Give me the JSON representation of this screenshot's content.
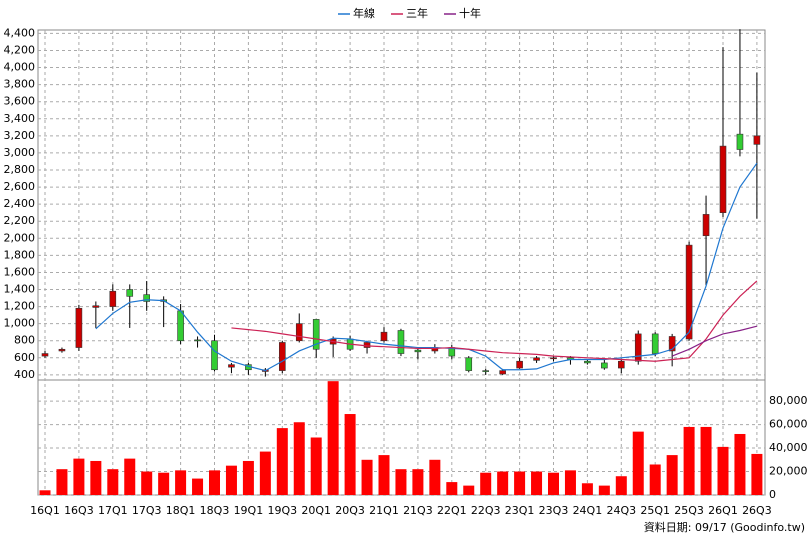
{
  "chart_data": [
    {
      "type": "candlestick",
      "categories": [
        "16Q1",
        null,
        "16Q3",
        null,
        "17Q1",
        null,
        "17Q3",
        null,
        "18Q1",
        null,
        "18Q3",
        null,
        "19Q1",
        null,
        "19Q3",
        null,
        "20Q1",
        null,
        "20Q3",
        null,
        "21Q1",
        null,
        "21Q3",
        null,
        "22Q1",
        null,
        "22Q3",
        null,
        "23Q1",
        null,
        "23Q3",
        null,
        "24Q1",
        null,
        "24Q3",
        null,
        "25Q1",
        null,
        "25Q3",
        null,
        "26Q1",
        null,
        "26Q3"
      ],
      "open": [
        620,
        680,
        720,
        1190,
        1200,
        1400,
        1340,
        1280,
        1150,
        810,
        800,
        490,
        520,
        440,
        450,
        800,
        1050,
        760,
        820,
        720,
        800,
        920,
        690,
        680,
        720,
        600,
        450,
        410,
        480,
        570,
        590,
        600,
        560,
        540,
        480,
        560,
        880,
        680,
        820,
        2030,
        2300,
        3220,
        3100
      ],
      "high": [
        680,
        720,
        1220,
        1260,
        1460,
        1460,
        1500,
        1320,
        1230,
        850,
        870,
        540,
        540,
        480,
        800,
        1120,
        1050,
        850,
        860,
        800,
        960,
        940,
        720,
        760,
        750,
        620,
        470,
        470,
        600,
        620,
        620,
        620,
        580,
        580,
        590,
        920,
        900,
        880,
        1960,
        2500,
        4240,
        4450,
        3940
      ],
      "low": [
        600,
        660,
        680,
        950,
        1150,
        950,
        1150,
        960,
        760,
        720,
        440,
        420,
        400,
        380,
        420,
        780,
        600,
        610,
        680,
        650,
        780,
        620,
        580,
        650,
        580,
        430,
        400,
        400,
        470,
        540,
        560,
        520,
        520,
        460,
        420,
        520,
        620,
        500,
        800,
        1450,
        2250,
        2960,
        2230
      ],
      "close": [
        650,
        700,
        1180,
        1210,
        1380,
        1320,
        1260,
        1260,
        800,
        800,
        460,
        520,
        460,
        460,
        780,
        1000,
        700,
        820,
        700,
        780,
        900,
        650,
        670,
        720,
        620,
        450,
        440,
        450,
        560,
        600,
        600,
        580,
        540,
        480,
        560,
        880,
        650,
        850,
        1920,
        2280,
        3080,
        3040,
        3200
      ],
      "up_color": "#cc0000",
      "down_color": "#33cc33",
      "series": [
        {
          "name": "年線",
          "color": "#1f77d0",
          "values": [
            null,
            null,
            null,
            940,
            1120,
            1250,
            1280,
            1270,
            1150,
            900,
            680,
            560,
            500,
            450,
            560,
            680,
            760,
            830,
            820,
            790,
            760,
            740,
            720,
            720,
            710,
            700,
            620,
            460,
            460,
            470,
            540,
            580,
            580,
            580,
            600,
            620,
            640,
            700,
            900,
            1440,
            2120,
            2600,
            2880
          ]
        },
        {
          "name": "三年",
          "color": "#cc2255",
          "values": [
            null,
            null,
            null,
            null,
            null,
            null,
            null,
            null,
            null,
            null,
            null,
            950,
            930,
            910,
            880,
            850,
            820,
            790,
            760,
            740,
            730,
            720,
            710,
            710,
            720,
            700,
            680,
            660,
            650,
            640,
            620,
            610,
            600,
            590,
            580,
            570,
            560,
            580,
            600,
            820,
            1100,
            1320,
            1500
          ]
        },
        {
          "name": "十年",
          "color": "#882288",
          "values": [
            null,
            null,
            null,
            null,
            null,
            null,
            null,
            null,
            null,
            null,
            null,
            null,
            null,
            null,
            null,
            null,
            null,
            null,
            null,
            null,
            null,
            null,
            null,
            null,
            null,
            null,
            null,
            null,
            null,
            null,
            null,
            null,
            null,
            null,
            null,
            null,
            null,
            620,
            700,
            800,
            880,
            920,
            970
          ]
        }
      ],
      "ylim": [
        340,
        4440
      ],
      "yticks": [
        400,
        600,
        800,
        {
          "value": 1000,
          "label": "1,000"
        },
        {
          "value": 1200,
          "label": "1,200"
        },
        {
          "value": 1400,
          "label": "1,400"
        },
        {
          "value": 1600,
          "label": "1,600"
        },
        {
          "value": 1800,
          "label": "1,800"
        },
        {
          "value": 2000,
          "label": "2,000"
        },
        {
          "value": 2200,
          "label": "2,200"
        },
        {
          "value": 2400,
          "label": "2,400"
        },
        {
          "value": 2600,
          "label": "2,600"
        },
        {
          "value": 2800,
          "label": "2,800"
        },
        {
          "value": 3000,
          "label": "3,000"
        },
        {
          "value": 3200,
          "label": "3,200"
        },
        {
          "value": 3400,
          "label": "3,400"
        },
        {
          "value": 3600,
          "label": "3,600"
        },
        {
          "value": 3800,
          "label": "3,800"
        },
        {
          "value": 4000,
          "label": "4,000"
        },
        {
          "value": 4200,
          "label": "4,200"
        },
        {
          "value": 4400,
          "label": "4,400"
        }
      ],
      "grid": true
    },
    {
      "type": "bar",
      "color": "#ff0000",
      "values": [
        4000,
        22000,
        31000,
        29000,
        22000,
        31000,
        20000,
        19000,
        21000,
        14000,
        21000,
        25000,
        29000,
        37000,
        57000,
        62000,
        49000,
        97000,
        69000,
        30000,
        34000,
        22000,
        22000,
        30000,
        11000,
        8000,
        19000,
        20000,
        20000,
        20000,
        19000,
        21000,
        10000,
        8000,
        16000,
        54000,
        26000,
        34000,
        58000,
        58000,
        41000,
        52000,
        35000
      ],
      "ylim": [
        0,
        98000
      ],
      "yticks": [
        0,
        {
          "value": 20000,
          "label": "20,000"
        },
        {
          "value": 40000,
          "label": "40,000"
        },
        {
          "value": 60000,
          "label": "60,000"
        },
        {
          "value": 80000,
          "label": "80,000"
        }
      ],
      "grid": true,
      "source": "資料日期: 09/17 (Goodinfo.tw)"
    }
  ]
}
